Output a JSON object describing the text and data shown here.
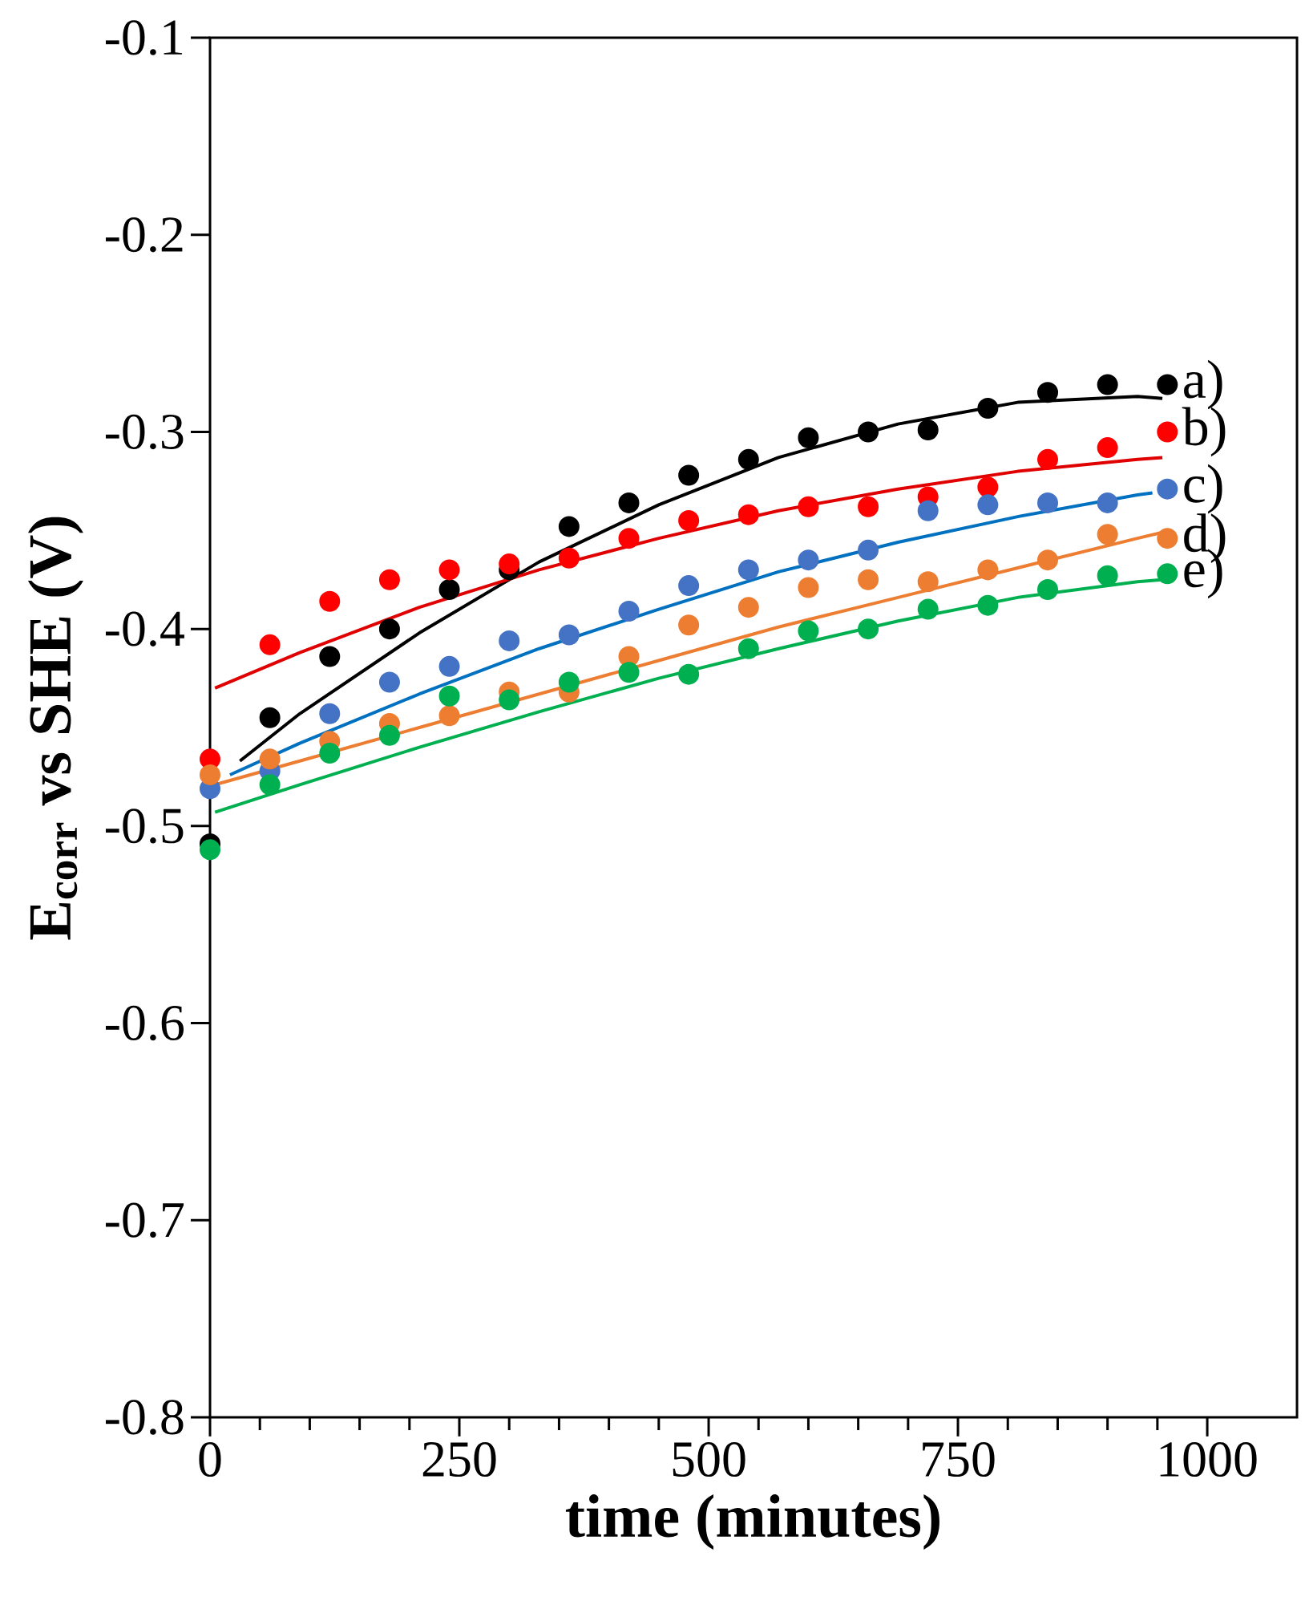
{
  "chart_data": {
    "type": "scatter",
    "xlabel": "time (minutes)",
    "ylabel": "E$_{corr}$ vs SHE (V)",
    "xlim": [
      0,
      1090
    ],
    "ylim": [
      -0.8,
      -0.1
    ],
    "xticks": [
      0,
      250,
      500,
      750,
      1000
    ],
    "yticks": [
      -0.8,
      -0.7,
      -0.6,
      -0.5,
      -0.4,
      -0.3,
      -0.2,
      -0.1
    ],
    "grid": false,
    "legend": "right",
    "x": [
      0,
      60,
      120,
      180,
      240,
      300,
      360,
      420,
      480,
      540,
      600,
      660,
      720,
      780,
      840,
      900,
      960
    ],
    "series": [
      {
        "name": "a)",
        "marker": "circle",
        "color": "#000000",
        "values": [
          -0.509,
          -0.445,
          -0.414,
          -0.4,
          -0.38,
          -0.37,
          -0.348,
          -0.336,
          -0.322,
          -0.314,
          -0.303,
          -0.3,
          -0.299,
          -0.288,
          -0.28,
          -0.276,
          -0.276
        ]
      },
      {
        "name": "b)",
        "marker": "circle",
        "color": "#ff0000",
        "values": [
          -0.466,
          -0.408,
          -0.386,
          -0.375,
          -0.37,
          -0.367,
          -0.364,
          -0.354,
          -0.345,
          -0.342,
          -0.338,
          -0.338,
          -0.333,
          -0.328,
          -0.314,
          -0.308,
          -0.3
        ]
      },
      {
        "name": "c)",
        "marker": "circle",
        "color": "#4472c4",
        "values": [
          -0.481,
          -0.472,
          -0.443,
          -0.427,
          -0.419,
          -0.406,
          -0.403,
          -0.391,
          -0.378,
          -0.37,
          -0.365,
          -0.36,
          -0.34,
          -0.337,
          -0.336,
          -0.336,
          -0.329
        ]
      },
      {
        "name": "d)",
        "marker": "circle",
        "color": "#ed7d31",
        "values": [
          -0.474,
          -0.466,
          -0.457,
          -0.448,
          -0.444,
          -0.432,
          -0.432,
          -0.414,
          -0.398,
          -0.389,
          -0.379,
          -0.375,
          -0.376,
          -0.37,
          -0.365,
          -0.352,
          -0.354
        ]
      },
      {
        "name": "e)",
        "marker": "circle",
        "color": "#00b050",
        "values": [
          -0.512,
          -0.479,
          -0.463,
          -0.454,
          -0.434,
          -0.436,
          -0.427,
          -0.422,
          -0.423,
          -0.41,
          -0.401,
          -0.4,
          -0.39,
          -0.388,
          -0.38,
          -0.373,
          -0.372
        ]
      },
      {
        "type": "line",
        "marker": "none",
        "color": "#000000",
        "x": [
          30,
          90,
          210,
          330,
          450,
          570,
          690,
          810,
          930,
          955
        ],
        "values": [
          -0.467,
          -0.443,
          -0.402,
          -0.366,
          -0.337,
          -0.313,
          -0.296,
          -0.285,
          -0.282,
          -0.283
        ]
      },
      {
        "type": "line",
        "marker": "none",
        "color": "#e00000",
        "x": [
          5,
          90,
          210,
          330,
          450,
          570,
          690,
          810,
          930,
          955
        ],
        "values": [
          -0.43,
          -0.412,
          -0.389,
          -0.37,
          -0.354,
          -0.34,
          -0.329,
          -0.32,
          -0.314,
          -0.313
        ]
      },
      {
        "type": "line",
        "marker": "none",
        "color": "#0070c0",
        "x": [
          20,
          90,
          210,
          330,
          450,
          570,
          690,
          810,
          930,
          945
        ],
        "values": [
          -0.474,
          -0.458,
          -0.433,
          -0.41,
          -0.39,
          -0.371,
          -0.356,
          -0.343,
          -0.332,
          -0.331
        ]
      },
      {
        "type": "line",
        "marker": "none",
        "color": "#ed7d31",
        "x": [
          5,
          90,
          210,
          330,
          450,
          570,
          690,
          810,
          930,
          955
        ],
        "values": [
          -0.479,
          -0.467,
          -0.45,
          -0.433,
          -0.416,
          -0.399,
          -0.384,
          -0.369,
          -0.354,
          -0.351
        ]
      },
      {
        "type": "line",
        "marker": "none",
        "color": "#00b050",
        "x": [
          5,
          90,
          210,
          330,
          450,
          570,
          690,
          810,
          930,
          955
        ],
        "values": [
          -0.493,
          -0.479,
          -0.46,
          -0.442,
          -0.425,
          -0.41,
          -0.396,
          -0.384,
          -0.376,
          -0.375
        ]
      }
    ]
  }
}
